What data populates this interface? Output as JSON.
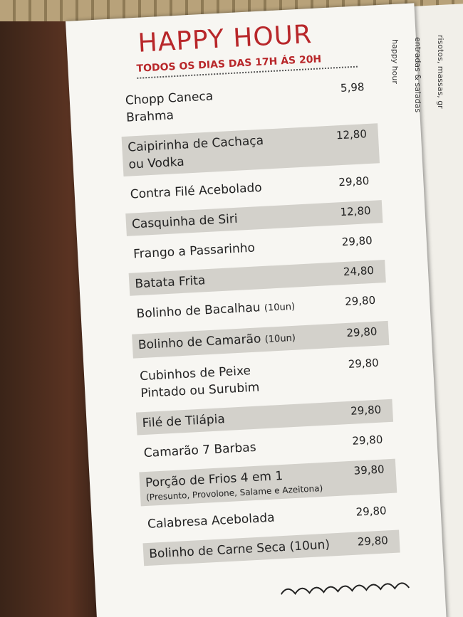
{
  "header": {
    "title": "HAPPY HOUR",
    "subtitle": "TODOS OS DIAS DAS 17H ÁS 20H"
  },
  "tabs": [
    "happy hour",
    "entradas & saladas",
    "risotos, massas, gr"
  ],
  "items": [
    {
      "name": [
        "Chopp Caneca",
        "Brahma"
      ],
      "price": "5,98"
    },
    {
      "name": [
        "Caipirinha de Cachaça",
        "ou Vodka"
      ],
      "price": "12,80"
    },
    {
      "name": [
        "Contra Filé Acebolado"
      ],
      "price": "29,80"
    },
    {
      "name": [
        "Casquinha de Siri"
      ],
      "price": "12,80"
    },
    {
      "name": [
        "Frango a Passarinho"
      ],
      "price": "29,80"
    },
    {
      "name": [
        "Batata Frita"
      ],
      "price": "24,80"
    },
    {
      "name": [
        "Bolinho de Bacalhau"
      ],
      "note": "(10un)",
      "price": "29,80"
    },
    {
      "name": [
        "Bolinho de Camarão"
      ],
      "note": "(10un)",
      "price": "29,80"
    },
    {
      "name": [
        "Cubinhos de Peixe",
        "Pintado ou Surubim"
      ],
      "price": "29,80"
    },
    {
      "name": [
        "Filé de Tilápia"
      ],
      "price": "29,80"
    },
    {
      "name": [
        "Camarão 7 Barbas"
      ],
      "price": "29,80"
    },
    {
      "name": [
        "Porção de Frios 4 em 1"
      ],
      "subnote": "(Presunto, Provolone, Salame e Azeitona)",
      "price": "39,80"
    },
    {
      "name": [
        "Calabresa Acebolada"
      ],
      "price": "29,80"
    },
    {
      "name": [
        "Bolinho de Carne Seca (10un)"
      ],
      "price": "29,80"
    }
  ]
}
